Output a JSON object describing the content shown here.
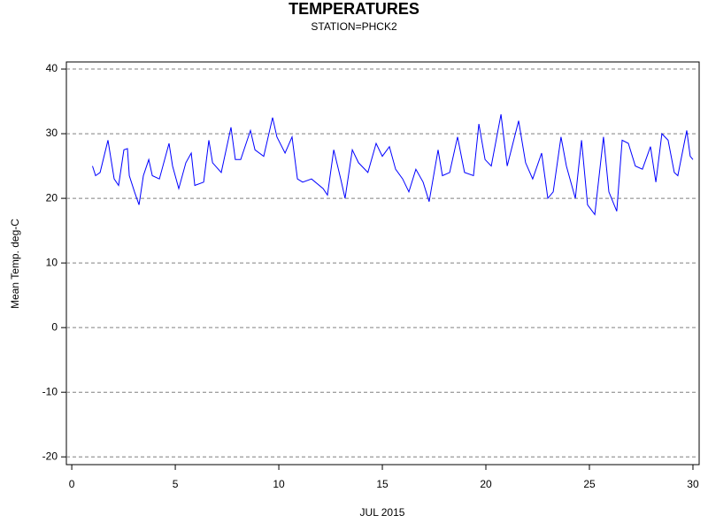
{
  "chart_data": {
    "type": "line",
    "title": "TEMPERATURES",
    "subtitle": "STATION=PHCK2",
    "x_label": "JUL 2015",
    "y_label": "Mean Temp. deg-C",
    "color": "#0000ff",
    "grid": true,
    "xlim": [
      -0.26,
      30.3
    ],
    "ylim": [
      -21.2,
      41.1
    ],
    "xticks": [
      0,
      5,
      10,
      15,
      20,
      25,
      30
    ],
    "yticks": [
      -20,
      -10,
      0,
      10,
      20,
      30,
      40
    ],
    "x": [
      1.0,
      1.15,
      1.37,
      1.75,
      2.05,
      2.26,
      2.52,
      2.69,
      2.78,
      3.03,
      3.25,
      3.46,
      3.72,
      3.89,
      4.23,
      4.7,
      4.87,
      5.17,
      5.51,
      5.77,
      5.94,
      6.37,
      6.62,
      6.8,
      7.22,
      7.69,
      7.9,
      8.16,
      8.63,
      8.85,
      9.27,
      9.7,
      9.91,
      10.3,
      10.64,
      10.9,
      11.15,
      11.58,
      12.14,
      12.35,
      12.65,
      12.99,
      13.2,
      13.55,
      13.85,
      14.3,
      14.7,
      15.0,
      15.34,
      15.64,
      15.98,
      16.28,
      16.62,
      16.97,
      17.26,
      17.69,
      17.9,
      18.25,
      18.63,
      18.97,
      19.4,
      19.66,
      19.96,
      20.26,
      20.73,
      21.03,
      21.58,
      21.92,
      22.26,
      22.69,
      22.99,
      23.25,
      23.63,
      23.89,
      24.32,
      24.62,
      24.91,
      25.26,
      25.68,
      25.94,
      26.32,
      26.58,
      26.88,
      27.22,
      27.56,
      27.95,
      28.21,
      28.5,
      28.8,
      29.1,
      29.27,
      29.7,
      29.87,
      30.0
    ],
    "values": [
      25,
      23.5,
      24,
      29,
      23,
      22,
      27.5,
      27.7,
      23.5,
      21,
      19,
      23.5,
      26,
      23.5,
      23,
      28.5,
      25,
      21.5,
      25.5,
      27,
      22,
      22.5,
      29,
      25.5,
      24,
      31,
      26,
      26,
      30.5,
      27.5,
      26.5,
      32.5,
      29.5,
      27,
      29.5,
      23,
      22.5,
      23,
      21.5,
      20.5,
      27.5,
      23,
      20,
      27.5,
      25.5,
      24,
      28.5,
      26.5,
      28,
      24.5,
      23,
      21,
      24.5,
      22.5,
      19.5,
      27.5,
      23.5,
      24,
      29.5,
      24,
      23.5,
      31.5,
      26,
      25,
      33,
      25,
      32,
      25.5,
      23,
      27,
      20,
      21,
      29.5,
      25,
      20,
      29,
      19,
      17.5,
      29.5,
      21,
      18,
      29,
      28.5,
      25,
      24.5,
      28,
      22.5,
      30,
      29,
      24,
      23.5,
      30.5,
      26.5,
      26
    ]
  }
}
